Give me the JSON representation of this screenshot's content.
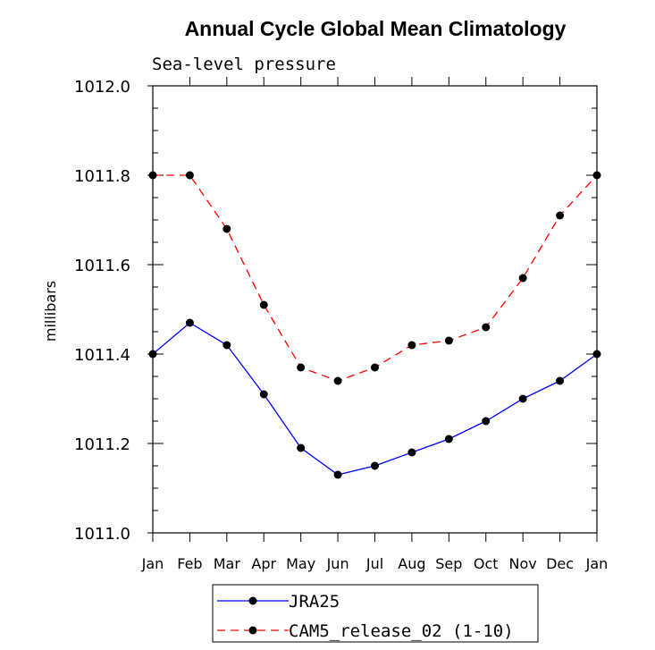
{
  "chart_data": {
    "type": "line",
    "title": "Annual Cycle Global Mean Climatology",
    "subtitle": "Sea-level pressure",
    "xlabel": "",
    "ylabel": "millibars",
    "categories": [
      "Jan",
      "Feb",
      "Mar",
      "Apr",
      "May",
      "Jun",
      "Jul",
      "Aug",
      "Sep",
      "Oct",
      "Nov",
      "Dec",
      "Jan"
    ],
    "ylim": [
      1011.0,
      1012.0
    ],
    "yticks": [
      "1011.0",
      "1011.2",
      "1011.4",
      "1011.6",
      "1011.8",
      "1012.0"
    ],
    "grid": false,
    "legend_position": "bottom",
    "series": [
      {
        "name": "JRA25",
        "color": "#0000ff",
        "style": "solid",
        "values": [
          1011.4,
          1011.47,
          1011.42,
          1011.31,
          1011.19,
          1011.13,
          1011.15,
          1011.18,
          1011.21,
          1011.25,
          1011.3,
          1011.34,
          1011.4
        ]
      },
      {
        "name": "CAM5_release_02 (1-10)",
        "color": "#ff0000",
        "style": "dashed",
        "values": [
          1011.8,
          1011.8,
          1011.68,
          1011.51,
          1011.37,
          1011.34,
          1011.37,
          1011.42,
          1011.43,
          1011.46,
          1011.57,
          1011.71,
          1011.8
        ]
      }
    ]
  }
}
